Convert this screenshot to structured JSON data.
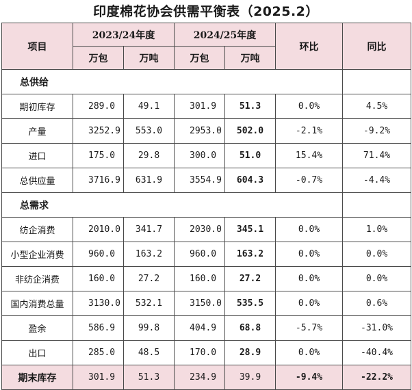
{
  "title": "印度棉花协会供需平衡表（2025.2）",
  "header": {
    "item": "项目",
    "year1": "2023/24年度",
    "year2": "2024/25年度",
    "mom": "环比",
    "yoy": "同比",
    "unit_bale": "万包",
    "unit_ton": "万吨"
  },
  "sections": {
    "supply": "总供给",
    "demand": "总需求"
  },
  "rows": [
    {
      "label": "期初库存",
      "y1_bale": "289.0",
      "y1_ton": "49.1",
      "y2_bale": "301.9",
      "y2_ton": "51.3",
      "mom": "0.0%",
      "yoy": "4.5%"
    },
    {
      "label": "产量",
      "y1_bale": "3252.9",
      "y1_ton": "553.0",
      "y2_bale": "2953.0",
      "y2_ton": "502.0",
      "mom": "-2.1%",
      "yoy": "-9.2%"
    },
    {
      "label": "进口",
      "y1_bale": "175.0",
      "y1_ton": "29.8",
      "y2_bale": "300.0",
      "y2_ton": "51.0",
      "mom": "15.4%",
      "yoy": "71.4%"
    },
    {
      "label": "总供应量",
      "y1_bale": "3716.9",
      "y1_ton": "631.9",
      "y2_bale": "3554.9",
      "y2_ton": "604.3",
      "mom": "-0.7%",
      "yoy": "-4.4%"
    },
    {
      "label": "纺企消费",
      "y1_bale": "2010.0",
      "y1_ton": "341.7",
      "y2_bale": "2030.0",
      "y2_ton": "345.1",
      "mom": "0.0%",
      "yoy": "1.0%"
    },
    {
      "label": "小型企业消费",
      "y1_bale": "960.0",
      "y1_ton": "163.2",
      "y2_bale": "960.0",
      "y2_ton": "163.2",
      "mom": "0.0%",
      "yoy": "0.0%"
    },
    {
      "label": "非纺企消费",
      "y1_bale": "160.0",
      "y1_ton": "27.2",
      "y2_bale": "160.0",
      "y2_ton": "27.2",
      "mom": "0.0%",
      "yoy": "0.0%"
    },
    {
      "label": "国内消费总量",
      "y1_bale": "3130.0",
      "y1_ton": "532.1",
      "y2_bale": "3150.0",
      "y2_ton": "535.5",
      "mom": "0.0%",
      "yoy": "0.6%"
    },
    {
      "label": "盈余",
      "y1_bale": "586.9",
      "y1_ton": "99.8",
      "y2_bale": "404.9",
      "y2_ton": "68.8",
      "mom": "-5.7%",
      "yoy": "-31.0%"
    },
    {
      "label": "出口",
      "y1_bale": "285.0",
      "y1_ton": "48.5",
      "y2_bale": "170.0",
      "y2_ton": "28.9",
      "mom": "0.0%",
      "yoy": "-40.4%"
    },
    {
      "label": "期末库存",
      "y1_bale": "301.9",
      "y1_ton": "51.3",
      "y2_bale": "234.9",
      "y2_ton": "39.9",
      "mom": "-9.4%",
      "yoy": "-22.2%"
    }
  ],
  "colors": {
    "header_bg": "#f4dce0",
    "border": "#4a4a4a"
  }
}
